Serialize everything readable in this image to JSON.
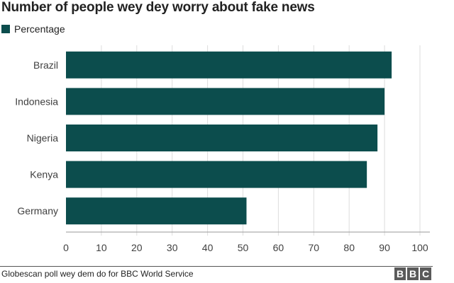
{
  "chart_data": {
    "type": "bar",
    "orientation": "horizontal",
    "title": "Number of people wey dey worry about fake news",
    "categories": [
      "Brazil",
      "Indonesia",
      "Nigeria",
      "Kenya",
      "Germany"
    ],
    "series": [
      {
        "name": "Percentage",
        "values": [
          92,
          90,
          88,
          85,
          51
        ]
      }
    ],
    "xlim": [
      0,
      100
    ],
    "xticks": [
      0,
      10,
      20,
      30,
      40,
      50,
      60,
      70,
      80,
      90,
      100
    ],
    "grid": true,
    "legend": "top-left",
    "bar_color": "#0c4d4d"
  },
  "footer": {
    "source": "Globescan poll wey dem do for BBC World Service",
    "logo_letters": [
      "B",
      "B",
      "C"
    ]
  }
}
